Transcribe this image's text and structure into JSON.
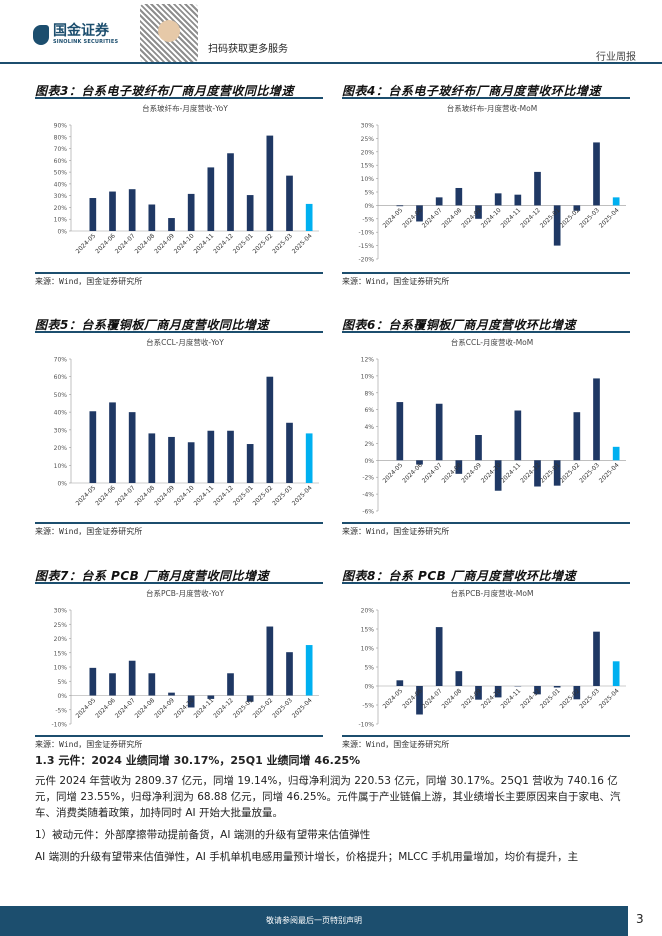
{
  "header": {
    "logo_cn": "国金证券",
    "logo_en": "SINOLINK SECURITIES",
    "qr_text": "扫码获取更多服务",
    "report_type": "行业周报"
  },
  "colors": {
    "bar": "#1f3864",
    "highlight": "#00b0f0",
    "accent": "#1c4e6e"
  },
  "figures": [
    {
      "title": "图表3：台系电子玻纤布厂商月度营收同比增速",
      "source": "来源：Wind，国金证券研究所"
    },
    {
      "title": "图表4：台系电子玻纤布厂商月度营收环比增速",
      "source": "来源：Wind，国金证券研究所"
    },
    {
      "title": "图表5：台系覆铜板厂商月度营收同比增速",
      "source": "来源：Wind，国金证券研究所"
    },
    {
      "title": "图表6：台系覆铜板厂商月度营收环比增速",
      "source": "来源：Wind，国金证券研究所"
    },
    {
      "title": "图表7：台系 PCB 厂商月度营收同比增速",
      "source": "来源：Wind，国金证券研究所"
    },
    {
      "title": "图表8：台系 PCB 厂商月度营收环比增速",
      "source": "来源：Wind，国金证券研究所"
    }
  ],
  "chart_data": [
    {
      "type": "bar",
      "title": "台系玻纤布-月度营收-YoY",
      "categories": [
        "2024-05",
        "2024-06",
        "2024-07",
        "2024-08",
        "2024-09",
        "2024-10",
        "2024-11",
        "2024-12",
        "2025-01",
        "2025-02",
        "2025-03",
        "2025-04"
      ],
      "values": [
        28,
        33.5,
        35.5,
        22.5,
        11,
        31.5,
        54,
        66,
        30.5,
        81,
        47,
        23
      ],
      "ylim": [
        0,
        90
      ],
      "ystep": 10,
      "unit": "%"
    },
    {
      "type": "bar",
      "title": "台系玻纤布-月度营收-MoM",
      "categories": [
        "2024-05",
        "2024-06",
        "2024-07",
        "2024-08",
        "2024-09",
        "2024-10",
        "2024-11",
        "2024-12",
        "2025-01",
        "2025-02",
        "2025-03",
        "2025-04"
      ],
      "values": [
        -0.3,
        -6,
        3,
        6.5,
        -5,
        4.5,
        4,
        12.5,
        -15,
        -2,
        23.5,
        3
      ],
      "ylim": [
        -20,
        30
      ],
      "ystep": 5,
      "unit": "%"
    },
    {
      "type": "bar",
      "title": "台系CCL-月度营收-YoY",
      "categories": [
        "2024-05",
        "2024-06",
        "2024-07",
        "2024-08",
        "2024-09",
        "2024-10",
        "2024-11",
        "2024-12",
        "2025-01",
        "2025-02",
        "2025-03",
        "2025-04"
      ],
      "values": [
        40.5,
        45.5,
        40,
        28,
        26,
        23,
        29.5,
        29.5,
        22,
        60,
        34,
        28
      ],
      "ylim": [
        0,
        70
      ],
      "ystep": 10,
      "unit": "%"
    },
    {
      "type": "bar",
      "title": "台系CCL-月度营收-MoM",
      "categories": [
        "2024-05",
        "2024-06",
        "2024-07",
        "2024-08",
        "2024-09",
        "2024-10",
        "2024-11",
        "2024-12",
        "2025-01",
        "2025-02",
        "2025-03",
        "2025-04"
      ],
      "values": [
        6.9,
        -0.5,
        6.7,
        -1.6,
        3.0,
        -3.6,
        5.9,
        -3.1,
        -3.0,
        5.7,
        9.7,
        1.6
      ],
      "ylim": [
        -6,
        12
      ],
      "ystep": 2,
      "unit": "%"
    },
    {
      "type": "bar",
      "title": "台系PCB-月度营收-YoY",
      "categories": [
        "2024-05",
        "2024-06",
        "2024-07",
        "2024-08",
        "2024-09",
        "2024-10",
        "2024-11",
        "2024-12",
        "2025-01",
        "2025-02",
        "2025-03",
        "2025-04"
      ],
      "values": [
        9.7,
        7.8,
        12.2,
        7.8,
        1,
        -4.2,
        -1.2,
        7.8,
        -2.2,
        24.2,
        15.2,
        17.7
      ],
      "ylim": [
        -10,
        30
      ],
      "ystep": 5,
      "unit": "%"
    },
    {
      "type": "bar",
      "title": "台系PCB-月度营收-MoM",
      "categories": [
        "2024-05",
        "2024-06",
        "2024-07",
        "2024-08",
        "2024-09",
        "2024-10",
        "2024-11",
        "2024-12",
        "2025-01",
        "2025-02",
        "2025-03",
        "2025-04"
      ],
      "values": [
        1.5,
        -7.5,
        15.5,
        3.9,
        -3.6,
        -3.0,
        -0.1,
        -2.2,
        -0.4,
        -3.5,
        14.3,
        6.5
      ],
      "ylim": [
        -10,
        20
      ],
      "ystep": 5,
      "unit": "%"
    }
  ],
  "section": {
    "heading": "1.3 元件：2024 业绩同增 30.17%，25Q1 业绩同增 46.25%",
    "p1": "元件 2024 年营收为 2809.37 亿元，同增 19.14%，归母净利润为 220.53 亿元，同增 30.17%。25Q1 营收为 740.16 亿元，同增 23.55%，归母净利润为 68.88 亿元，同增 46.25%。元件属于产业链偏上游，其业绩增长主要原因来自于家电、汽车、消费类随着政策，加持同时 AI 开始大批量放量。",
    "p2": "1）被动元件：外部摩擦带动提前备货，AI 端测的升级有望带来估值弹性",
    "p3": "AI 端测的升级有望带来估值弹性，AI 手机单机电感用量预计增长，价格提升；MLCC 手机用量增加，均价有提升，主"
  },
  "footer": {
    "disclaimer": "敬请参阅最后一页特别声明",
    "page": "3"
  }
}
